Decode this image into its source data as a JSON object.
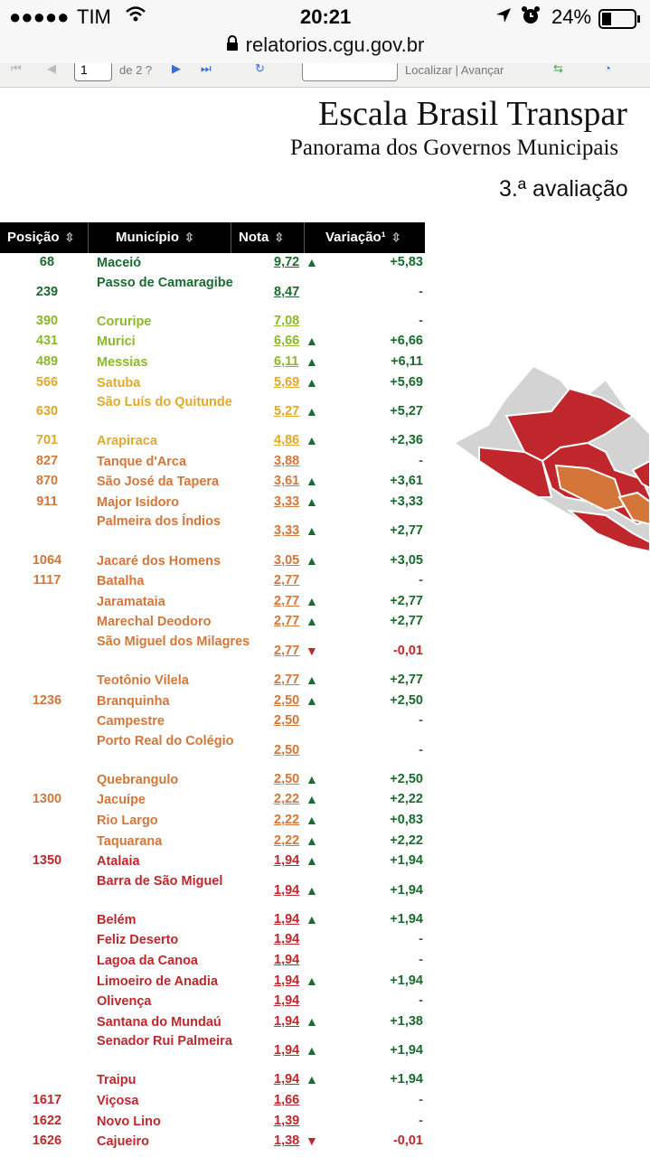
{
  "status_bar": {
    "carrier": "TIM",
    "time": "20:21",
    "battery": "24%"
  },
  "browser": {
    "url": "relatorios.cgu.gov.br"
  },
  "viewer_toolbar": {
    "page_value": "1",
    "page_of": "de 2 ?",
    "find_labels": "Localizar | Avançar"
  },
  "header": {
    "title": "Escala Brasil Transpar",
    "subtitle": "Panorama dos Governos Municipais",
    "evaluation": "3.ª avaliação"
  },
  "table": {
    "columns": [
      "Posição",
      "Município",
      "Nota",
      "Variação¹"
    ],
    "rows": [
      {
        "pos": "68",
        "mun": "Maceió",
        "nota": "9,72",
        "arrow": "up",
        "var": "+5,83",
        "color": "#1a6b2f"
      },
      {
        "pos": "239",
        "mun": "Passo de Camaragibe",
        "nota": "8,47",
        "arrow": "",
        "var": "-",
        "color": "#1a6b2f"
      },
      {
        "pos": "390",
        "mun": "Coruripe",
        "nota": "7,08",
        "arrow": "",
        "var": "-",
        "color": "#8cb82c"
      },
      {
        "pos": "431",
        "mun": "Murici",
        "nota": "6,66",
        "arrow": "up",
        "var": "+6,66",
        "color": "#8cb82c"
      },
      {
        "pos": "489",
        "mun": "Messias",
        "nota": "6,11",
        "arrow": "up",
        "var": "+6,11",
        "color": "#8cb82c"
      },
      {
        "pos": "566",
        "mun": "Satuba",
        "nota": "5,69",
        "arrow": "up",
        "var": "+5,69",
        "color": "#e0a92a"
      },
      {
        "pos": "630",
        "mun": "São Luís do Quitunde",
        "nota": "5,27",
        "arrow": "up",
        "var": "+5,27",
        "color": "#e0a92a"
      },
      {
        "pos": "701",
        "mun": "Arapiraca",
        "nota": "4,86",
        "arrow": "up",
        "var": "+2,36",
        "color": "#e0a92a"
      },
      {
        "pos": "827",
        "mun": "Tanque d'Arca",
        "nota": "3,88",
        "arrow": "",
        "var": "-",
        "color": "#d4763a"
      },
      {
        "pos": "870",
        "mun": "São José da Tapera",
        "nota": "3,61",
        "arrow": "up",
        "var": "+3,61",
        "color": "#d4763a"
      },
      {
        "pos": "911",
        "mun": "Major Isidoro",
        "nota": "3,33",
        "arrow": "up",
        "var": "+3,33",
        "color": "#d4763a"
      },
      {
        "pos": "",
        "mun": "Palmeira dos Índios",
        "nota": "3,33",
        "arrow": "up",
        "var": "+2,77",
        "color": "#d4763a"
      },
      {
        "pos": "1064",
        "mun": "Jacaré dos Homens",
        "nota": "3,05",
        "arrow": "up",
        "var": "+3,05",
        "color": "#d4763a"
      },
      {
        "pos": "1117",
        "mun": "Batalha",
        "nota": "2,77",
        "arrow": "",
        "var": "-",
        "color": "#d4763a"
      },
      {
        "pos": "",
        "mun": "Jaramataia",
        "nota": "2,77",
        "arrow": "up",
        "var": "+2,77",
        "color": "#d4763a"
      },
      {
        "pos": "",
        "mun": "Marechal Deodoro",
        "nota": "2,77",
        "arrow": "up",
        "var": "+2,77",
        "color": "#d4763a"
      },
      {
        "pos": "",
        "mun": "São Miguel dos Milagres",
        "nota": "2,77",
        "arrow": "down",
        "var": "-0,01",
        "color": "#d4763a"
      },
      {
        "pos": "",
        "mun": "Teotônio Vilela",
        "nota": "2,77",
        "arrow": "up",
        "var": "+2,77",
        "color": "#d4763a"
      },
      {
        "pos": "1236",
        "mun": "Branquinha",
        "nota": "2,50",
        "arrow": "up",
        "var": "+2,50",
        "color": "#d4763a"
      },
      {
        "pos": "",
        "mun": "Campestre",
        "nota": "2,50",
        "arrow": "",
        "var": "-",
        "color": "#d4763a"
      },
      {
        "pos": "",
        "mun": "Porto Real do Colégio",
        "nota": "2,50",
        "arrow": "",
        "var": "-",
        "color": "#d4763a"
      },
      {
        "pos": "",
        "mun": "Quebrangulo",
        "nota": "2,50",
        "arrow": "up",
        "var": "+2,50",
        "color": "#d4763a"
      },
      {
        "pos": "1300",
        "mun": "Jacuípe",
        "nota": "2,22",
        "arrow": "up",
        "var": "+2,22",
        "color": "#d4763a"
      },
      {
        "pos": "",
        "mun": "Rio Largo",
        "nota": "2,22",
        "arrow": "up",
        "var": "+0,83",
        "color": "#d4763a"
      },
      {
        "pos": "",
        "mun": "Taquarana",
        "nota": "2,22",
        "arrow": "up",
        "var": "+2,22",
        "color": "#d4763a"
      },
      {
        "pos": "1350",
        "mun": "Atalaia",
        "nota": "1,94",
        "arrow": "up",
        "var": "+1,94",
        "color": "#c0272d"
      },
      {
        "pos": "",
        "mun": "Barra de São Miguel",
        "nota": "1,94",
        "arrow": "up",
        "var": "+1,94",
        "color": "#c0272d"
      },
      {
        "pos": "",
        "mun": "Belém",
        "nota": "1,94",
        "arrow": "up",
        "var": "+1,94",
        "color": "#c0272d"
      },
      {
        "pos": "",
        "mun": "Feliz Deserto",
        "nota": "1,94",
        "arrow": "",
        "var": "-",
        "color": "#c0272d"
      },
      {
        "pos": "",
        "mun": "Lagoa da Canoa",
        "nota": "1,94",
        "arrow": "",
        "var": "-",
        "color": "#c0272d"
      },
      {
        "pos": "",
        "mun": "Limoeiro de Anadia",
        "nota": "1,94",
        "arrow": "up",
        "var": "+1,94",
        "color": "#c0272d"
      },
      {
        "pos": "",
        "mun": "Olivença",
        "nota": "1,94",
        "arrow": "",
        "var": "-",
        "color": "#c0272d"
      },
      {
        "pos": "",
        "mun": "Santana do Mundaú",
        "nota": "1,94",
        "arrow": "up",
        "var": "+1,38",
        "color": "#c0272d"
      },
      {
        "pos": "",
        "mun": "Senador Rui Palmeira",
        "nota": "1,94",
        "arrow": "up",
        "var": "+1,94",
        "color": "#c0272d"
      },
      {
        "pos": "",
        "mun": "Traipu",
        "nota": "1,94",
        "arrow": "up",
        "var": "+1,94",
        "color": "#c0272d"
      },
      {
        "pos": "1617",
        "mun": "Viçosa",
        "nota": "1,66",
        "arrow": "",
        "var": "-",
        "color": "#c0272d"
      },
      {
        "pos": "1622",
        "mun": "Novo Lino",
        "nota": "1,39",
        "arrow": "",
        "var": "-",
        "color": "#c0272d"
      },
      {
        "pos": "1626",
        "mun": "Cajueiro",
        "nota": "1,38",
        "arrow": "down",
        "var": "-0,01",
        "color": "#c0272d"
      }
    ]
  },
  "colors": {
    "up": "#1a6b2f",
    "down": "#c0272d",
    "map_red": "#c0272d",
    "map_orange": "#d4763a",
    "map_gray": "#d3d3d3"
  }
}
